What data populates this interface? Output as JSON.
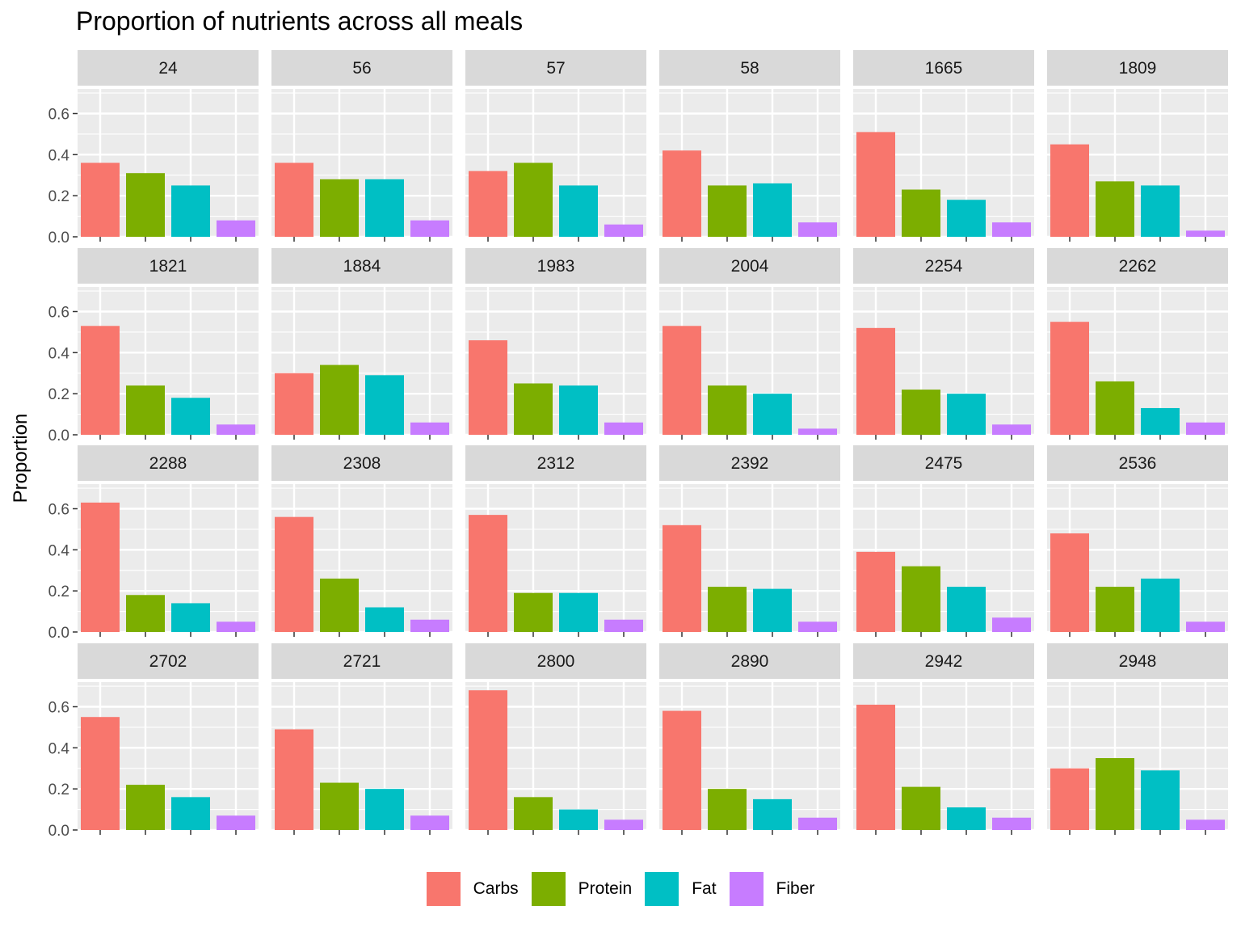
{
  "chart_data": {
    "type": "bar",
    "title": "Proportion of nutrients across all meals",
    "xlabel": "",
    "ylabel": "Proportion",
    "ylim": [
      0,
      0.72
    ],
    "yticks": [
      "0.0",
      "0.2",
      "0.4",
      "0.6"
    ],
    "grid": true,
    "legend_position": "bottom",
    "categories": [
      "Carbs",
      "Protein",
      "Fat",
      "Fiber"
    ],
    "colors": {
      "Carbs": "#F8766D",
      "Protein": "#7CAE00",
      "Fat": "#00BFC4",
      "Fiber": "#C77CFF"
    },
    "facets": [
      {
        "label": "24",
        "values": [
          0.36,
          0.31,
          0.25,
          0.08
        ]
      },
      {
        "label": "56",
        "values": [
          0.36,
          0.28,
          0.28,
          0.08
        ]
      },
      {
        "label": "57",
        "values": [
          0.32,
          0.36,
          0.25,
          0.06
        ]
      },
      {
        "label": "58",
        "values": [
          0.42,
          0.25,
          0.26,
          0.07
        ]
      },
      {
        "label": "1665",
        "values": [
          0.51,
          0.23,
          0.18,
          0.07
        ]
      },
      {
        "label": "1809",
        "values": [
          0.45,
          0.27,
          0.25,
          0.03
        ]
      },
      {
        "label": "1821",
        "values": [
          0.53,
          0.24,
          0.18,
          0.05
        ]
      },
      {
        "label": "1884",
        "values": [
          0.3,
          0.34,
          0.29,
          0.06
        ]
      },
      {
        "label": "1983",
        "values": [
          0.46,
          0.25,
          0.24,
          0.06
        ]
      },
      {
        "label": "2004",
        "values": [
          0.53,
          0.24,
          0.2,
          0.03
        ]
      },
      {
        "label": "2254",
        "values": [
          0.52,
          0.22,
          0.2,
          0.05
        ]
      },
      {
        "label": "2262",
        "values": [
          0.55,
          0.26,
          0.13,
          0.06
        ]
      },
      {
        "label": "2288",
        "values": [
          0.63,
          0.18,
          0.14,
          0.05
        ]
      },
      {
        "label": "2308",
        "values": [
          0.56,
          0.26,
          0.12,
          0.06
        ]
      },
      {
        "label": "2312",
        "values": [
          0.57,
          0.19,
          0.19,
          0.06
        ]
      },
      {
        "label": "2392",
        "values": [
          0.52,
          0.22,
          0.21,
          0.05
        ]
      },
      {
        "label": "2475",
        "values": [
          0.39,
          0.32,
          0.22,
          0.07
        ]
      },
      {
        "label": "2536",
        "values": [
          0.48,
          0.22,
          0.26,
          0.05
        ]
      },
      {
        "label": "2702",
        "values": [
          0.55,
          0.22,
          0.16,
          0.07
        ]
      },
      {
        "label": "2721",
        "values": [
          0.49,
          0.23,
          0.2,
          0.07
        ]
      },
      {
        "label": "2800",
        "values": [
          0.68,
          0.16,
          0.1,
          0.05
        ]
      },
      {
        "label": "2890",
        "values": [
          0.58,
          0.2,
          0.15,
          0.06
        ]
      },
      {
        "label": "2942",
        "values": [
          0.61,
          0.21,
          0.11,
          0.06
        ]
      },
      {
        "label": "2948",
        "values": [
          0.3,
          0.35,
          0.29,
          0.05
        ]
      }
    ]
  }
}
